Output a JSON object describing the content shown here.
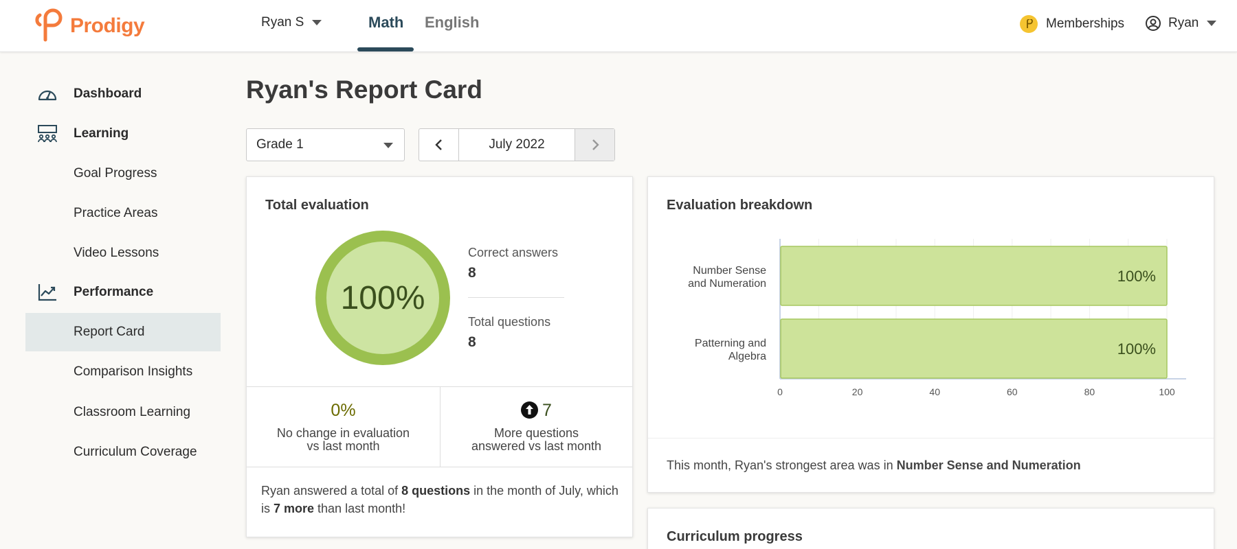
{
  "header": {
    "brand": "Prodigy",
    "child_name": "Ryan S",
    "tabs": [
      {
        "label": "Math",
        "active": true
      },
      {
        "label": "English",
        "active": false
      }
    ],
    "memberships_label": "Memberships",
    "user_name": "Ryan"
  },
  "sidebar": {
    "items": [
      {
        "label": "Dashboard",
        "icon": "gauge-icon",
        "main": true
      },
      {
        "label": "Learning",
        "icon": "classroom-icon",
        "main": true
      },
      {
        "label": "Goal Progress"
      },
      {
        "label": "Practice Areas"
      },
      {
        "label": "Video Lessons"
      },
      {
        "label": "Performance",
        "icon": "trend-chart-icon",
        "main": true
      },
      {
        "label": "Report Card",
        "active": true
      },
      {
        "label": "Comparison Insights"
      },
      {
        "label": "Classroom Learning"
      },
      {
        "label": "Curriculum Coverage"
      }
    ]
  },
  "main": {
    "title": "Ryan's Report Card",
    "grade_select": "Grade 1",
    "month": "July 2022"
  },
  "total_evaluation": {
    "title": "Total evaluation",
    "score_text": "100%",
    "score": 100,
    "correct_label": "Correct answers",
    "correct_value": "8",
    "total_label": "Total questions",
    "total_value": "8",
    "change_value": "0%",
    "change_label_1": "No change in evaluation",
    "change_label_2": "vs last month",
    "more_value": "7",
    "more_label_1": "More questions",
    "more_label_2": "answered vs last month",
    "summary": {
      "p1": "Ryan answered a total of ",
      "b1": "8 questions",
      "p2": " in the month of July, which is ",
      "b2": "7 more",
      "p3": " than last month!"
    }
  },
  "evaluation_breakdown": {
    "title": "Evaluation breakdown",
    "footer_text": "This month, Ryan's strongest area was in ",
    "footer_bold": "Number Sense and Numeration"
  },
  "curriculum_progress": {
    "title": "Curriculum progress"
  },
  "colors": {
    "brand": "#f47b3c",
    "accent": "#2b4a5a",
    "ring": "#9bc04f",
    "ring_fill": "#cde4a2",
    "bar_fill": "#cde39a",
    "bar_stroke": "#a6c860"
  },
  "chart_data": {
    "type": "bar",
    "orientation": "horizontal",
    "categories": [
      [
        "Number Sense",
        "and Numeration"
      ],
      [
        "Patterning and",
        "Algebra"
      ]
    ],
    "values": [
      100,
      100
    ],
    "data_labels": [
      "100%",
      "100%"
    ],
    "x_ticks": [
      0,
      20,
      40,
      60,
      80,
      100
    ],
    "xlim": [
      0,
      100
    ],
    "grid": true
  }
}
